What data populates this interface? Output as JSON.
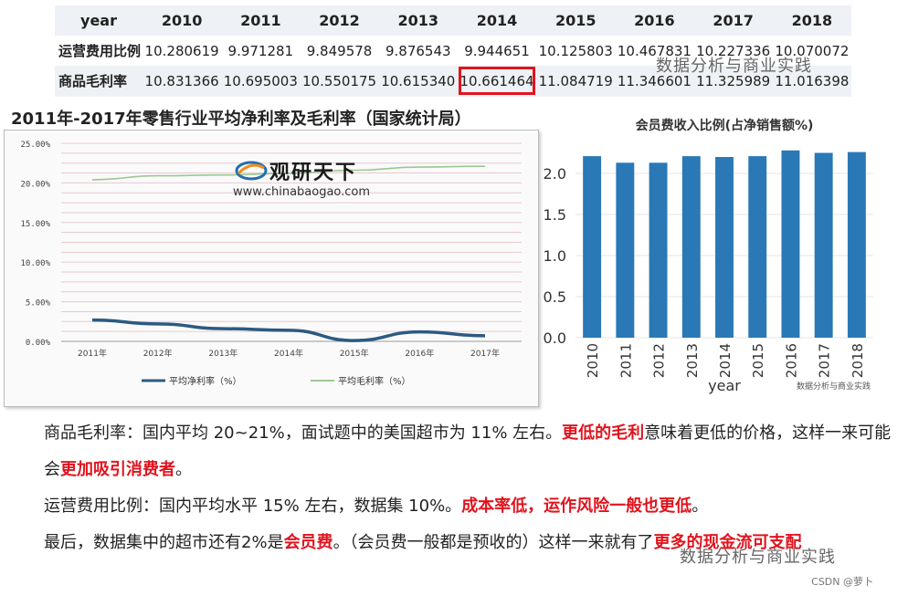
{
  "table": {
    "columns": [
      "year",
      "2010",
      "2011",
      "2012",
      "2013",
      "2014",
      "2015",
      "2016",
      "2017",
      "2018"
    ],
    "rows": [
      {
        "label": "运营费用比例",
        "values": [
          "10.280619",
          "9.971281",
          "9.849578",
          "9.876543",
          "9.944651",
          "10.125803",
          "10.467831",
          "10.227336",
          "10.070072"
        ]
      },
      {
        "label": "商品毛利率",
        "values": [
          "10.831366",
          "10.695003",
          "10.550175",
          "10.615340",
          "10.661464",
          "11.084719",
          "11.346601",
          "11.325989",
          "11.016398"
        ]
      }
    ],
    "highlight_cell": "10.661464"
  },
  "watermarks": {
    "main": "数据分析与商业实践",
    "small": "数据分析与商业实践",
    "brand_name": "观研天下",
    "brand_url": "www.chinabaogao.com",
    "csdn": "CSDN @萝卜"
  },
  "chart_data": [
    {
      "type": "line",
      "title": "2011年-2017年零售行业平均净利率及毛利率（国家统计局）",
      "x": [
        "2011年",
        "2012年",
        "2013年",
        "2014年",
        "2015年",
        "2016年",
        "2017年"
      ],
      "series": [
        {
          "name": "平均净利率（%）",
          "values": [
            2.7,
            2.2,
            1.6,
            1.4,
            0.1,
            1.2,
            0.7
          ],
          "color": "#2b5a82"
        },
        {
          "name": "平均毛利率（%）",
          "values": [
            20.4,
            20.9,
            21.0,
            21.2,
            21.6,
            22.0,
            22.1
          ],
          "color": "#9cc792"
        }
      ],
      "ylim": [
        0,
        25
      ],
      "yticks": [
        "0.00%",
        "5.00%",
        "10.00%",
        "15.00%",
        "20.00%",
        "25.00%"
      ],
      "grid": true,
      "legend": "bottom"
    },
    {
      "type": "bar",
      "title": "会员费收入比例(占净销售额%)",
      "categories": [
        "2010",
        "2011",
        "2012",
        "2013",
        "2014",
        "2015",
        "2016",
        "2017",
        "2018"
      ],
      "values": [
        2.21,
        2.13,
        2.13,
        2.21,
        2.2,
        2.21,
        2.28,
        2.25,
        2.26
      ],
      "xlabel": "year",
      "ylabel": "",
      "ylim": [
        0,
        2.4
      ],
      "yticks": [
        "0.0",
        "0.5",
        "1.0",
        "1.5",
        "2.0"
      ],
      "color": "#2a78b5",
      "grid": true
    }
  ],
  "paragraphs": [
    [
      {
        "t": "商品毛利率：国内平均 20~21%，面试题中的美国超市为 11% 左右。",
        "red": false
      },
      {
        "t": "更低的毛利",
        "red": true
      },
      {
        "t": "意味着更低的价格，这样一来可能会",
        "red": false
      },
      {
        "t": "更加吸引消费者",
        "red": true
      },
      {
        "t": "。",
        "red": false
      }
    ],
    [
      {
        "t": "运营费用比例：国内平均水平 15% 左右，数据集 10%。",
        "red": false
      },
      {
        "t": "成本率低，运作风险一般也更低",
        "red": true
      },
      {
        "t": "。",
        "red": false
      }
    ],
    [
      {
        "t": "最后，数据集中的超市还有2%是",
        "red": false
      },
      {
        "t": "会员费",
        "red": true
      },
      {
        "t": "。（会员费一般都是预收的）这样一来就有了",
        "red": false
      },
      {
        "t": "更多的现金流可支配",
        "red": true
      }
    ]
  ]
}
